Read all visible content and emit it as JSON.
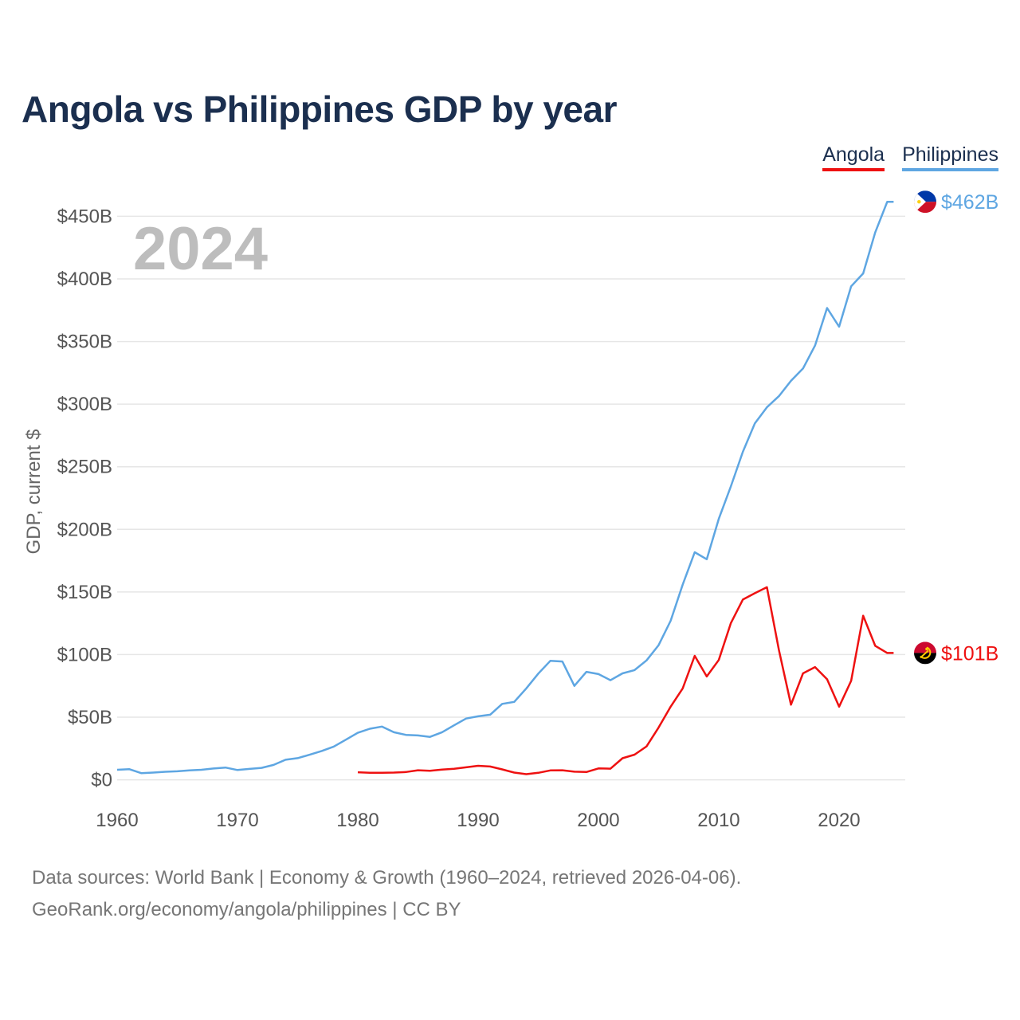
{
  "page": {
    "title": "Angola vs Philippines GDP by year",
    "footer_line1": "Data sources: World Bank | Economy & Growth (1960–2024, retrieved 2026-04-06).",
    "footer_line2": "GeoRank.org/economy/angola/philippines | CC BY"
  },
  "legend": {
    "items": [
      {
        "label": "Angola",
        "color": "#ee1111"
      },
      {
        "label": "Philippines",
        "color": "#5ea6e2"
      }
    ]
  },
  "chart_data": {
    "type": "line",
    "title": "Angola vs Philippines GDP by year",
    "year_display": "2024",
    "xlabel": "",
    "ylabel": "GDP, current $",
    "xlim": [
      1960,
      2025.5
    ],
    "ylim": [
      -20,
      470
    ],
    "x_ticks": [
      1960,
      1970,
      1980,
      1990,
      2000,
      2010,
      2020
    ],
    "y_ticks": [
      0,
      50,
      100,
      150,
      200,
      250,
      300,
      350,
      400,
      450
    ],
    "y_tick_labels": [
      "$0",
      "$50B",
      "$100B",
      "$150B",
      "$200B",
      "$250B",
      "$300B",
      "$350B",
      "$400B",
      "$450B"
    ],
    "grid": true,
    "series": [
      {
        "name": "Philippines",
        "color": "#5ea6e2",
        "flag_icon": "philippines-flag-icon",
        "end_label": "$462B",
        "start_year": 1960,
        "values": [
          8,
          8.5,
          5.3,
          5.8,
          6.4,
          6.8,
          7.5,
          8.0,
          9.0,
          9.8,
          7.8,
          8.7,
          9.5,
          11.9,
          16.0,
          17.3,
          20.0,
          23.0,
          26.5,
          32.0,
          37.5,
          40.8,
          42.5,
          38.0,
          35.9,
          35.4,
          34.3,
          38.0,
          43.5,
          48.9,
          50.7,
          52.0,
          60.6,
          62.2,
          73.0,
          84.8,
          95.0,
          94.5,
          75.0,
          86.2,
          84.4,
          79.5,
          85.0,
          87.6,
          95.4,
          107.5,
          127.0,
          155.8,
          181.7,
          176.1,
          208.4,
          234.2,
          261.9,
          284.7,
          297.5,
          306.4,
          318.6,
          328.5,
          346.8,
          376.8,
          361.8,
          394.1,
          404.4,
          437.1,
          461.6
        ]
      },
      {
        "name": "Angola",
        "color": "#ee1111",
        "flag_icon": "angola-flag-icon",
        "end_label": "$101B",
        "start_year": 1980,
        "values": [
          6.0,
          5.6,
          5.6,
          5.8,
          6.2,
          7.6,
          7.2,
          8.1,
          8.8,
          10.0,
          11.2,
          10.6,
          8.3,
          5.8,
          4.5,
          5.6,
          7.5,
          7.6,
          6.5,
          6.2,
          9.1,
          8.9,
          17.2,
          20.1,
          26.7,
          41.8,
          58.4,
          73.0,
          99.0,
          82.5,
          95.7,
          125.0,
          143.9,
          149.0,
          153.8,
          103.5,
          60.0,
          85.0,
          90.0,
          80.3,
          58.4,
          79.0,
          131.0,
          107.0,
          101.3
        ]
      }
    ]
  }
}
